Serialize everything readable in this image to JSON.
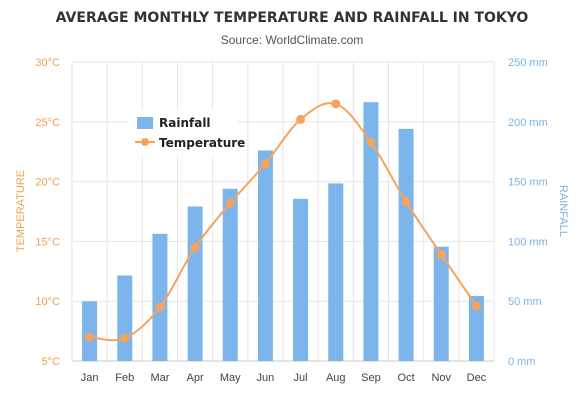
{
  "chart_data": {
    "type": "bar",
    "title": "AVERAGE MONTHLY TEMPERATURE AND RAINFALL IN TOKYO",
    "subtitle": "Source: WorldClimate.com",
    "categories": [
      "Jan",
      "Feb",
      "Mar",
      "Apr",
      "May",
      "Jun",
      "Jul",
      "Aug",
      "Sep",
      "Oct",
      "Nov",
      "Dec"
    ],
    "series": [
      {
        "name": "Rainfall",
        "type": "bar",
        "axis": "right",
        "color": "#7cb5ec",
        "values": [
          49.9,
          71.5,
          106.4,
          129.2,
          144.0,
          176.0,
          135.6,
          148.5,
          216.4,
          194.1,
          95.6,
          54.4
        ]
      },
      {
        "name": "Temperature",
        "type": "line",
        "axis": "left",
        "color": "#f7a35c",
        "values": [
          7.0,
          6.9,
          9.5,
          14.5,
          18.2,
          21.5,
          25.2,
          26.5,
          23.3,
          18.3,
          13.9,
          9.6
        ]
      }
    ],
    "y_left": {
      "label": "TEMPERATURE",
      "ticks": [
        "5°C",
        "10°C",
        "15°C",
        "20°C",
        "25°C",
        "30°C"
      ],
      "range": [
        5,
        30
      ]
    },
    "y_right": {
      "label": "RAINFALL",
      "ticks": [
        "0 mm",
        "50 mm",
        "100 mm",
        "150 mm",
        "200 mm",
        "250 mm"
      ],
      "range": [
        0,
        250
      ]
    },
    "grid": true,
    "legend_position": "top-left"
  }
}
